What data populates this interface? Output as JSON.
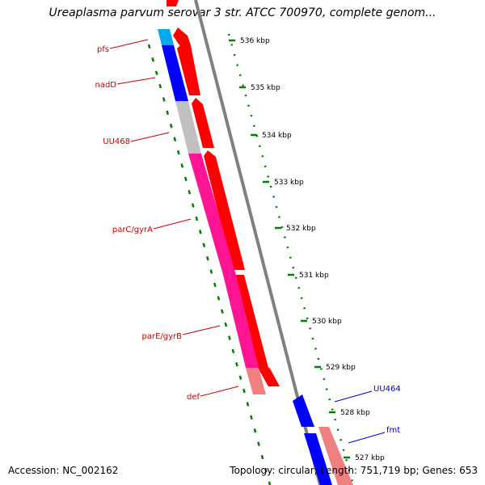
{
  "title": "Ureaplasma parvum serovar 3 str. ATCC 700970, complete genom...",
  "accession": "Accession: NC_002162",
  "summary": "Topology: circular; Length: 751,719 bp; Genes: 653",
  "colors": {
    "backbone": "#808080",
    "ticks": "#008000",
    "strand_plus": "#ff0000",
    "strand_plus_light": "#f08080",
    "strand_minus_blue": "#0000ff",
    "strand_minus_cyan": "#00aaee",
    "strand_minus_gray": "#c0c0c0",
    "strand_minus_magenta": "#ff1493",
    "strand_minus_pink": "#f08080",
    "label_red": "#cc0000",
    "label_blue": "#0000cc"
  },
  "tick_labels": [
    "536 kbp",
    "535 kbp",
    "534 kbp",
    "533 kbp",
    "532 kbp",
    "531 kbp",
    "530 kbp",
    "529 kbp",
    "528 kbp",
    "527 kbp"
  ],
  "gene_labels_left": [
    "pfs",
    "nadD",
    "UU468",
    "parC/gyrA",
    "parE/gyrB",
    "def"
  ],
  "gene_labels_right": [
    "UU464",
    "fmt"
  ]
}
